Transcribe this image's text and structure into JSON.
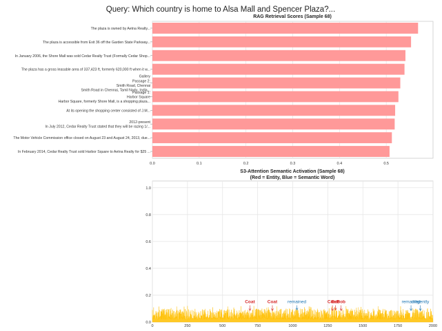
{
  "figure": {
    "suptitle": "Query: Which country is home to Alsa Mall and Spencer Plaza?..."
  },
  "colors": {
    "bar": "#ff9999",
    "activation": "#ffbf00",
    "entity": "#d62728",
    "semantic": "#1f77b4",
    "grid": "#e6e6e6",
    "axis": "#cccccc",
    "text": "#333333"
  },
  "chart_data": [
    {
      "type": "bar",
      "orientation": "horizontal",
      "title": "RAG Retrieval Scores (Sample 68)",
      "xlabel": "",
      "ylabel": "",
      "xlim": [
        0,
        0.6
      ],
      "xticks": [
        "0.0",
        "0.1",
        "0.2",
        "0.3",
        "0.4",
        "0.5"
      ],
      "grid": true,
      "categories": [
        [
          "The plaza is owned by Aetna Realty..."
        ],
        [
          "The plaza is accessible from Exit 36 off the Garden State Parkway..."
        ],
        [
          "In January 2006, the Shore Mall was sold Cedar Realty Trust (Formally Cedar Shop..."
        ],
        [
          "The plaza has a gross leasable area of 337,423 ft, formerly 620,000 ft when it w..."
        ],
        [
          "Gallery",
          "Passage 2:",
          "Smith Road, Chennai",
          "Smith Road in Chennai, Tamil Nadu, India..."
        ],
        [
          "Passage 1:",
          "Harbor Square",
          "Harbor Square, formerly Shore Mall, is a shopping plaza..."
        ],
        [
          "At its opening the shopping center consisted of J.M..."
        ],
        [
          "2012-present",
          "In July 2012, Cedar Realty Trust stated that they will be razing 1/..."
        ],
        [
          "The Motor Vehicle Commission office closed on August 23 and August 24, 2013, due..."
        ],
        [
          "In February 2014, Cedar Realty Trust sold Harbor Square to Aetna Realty for $25 ..."
        ]
      ],
      "values": [
        0.568,
        0.553,
        0.541,
        0.539,
        0.53,
        0.526,
        0.519,
        0.518,
        0.512,
        0.507
      ]
    },
    {
      "type": "area",
      "title": "S3-Attention Semantic Activation (Sample 68)",
      "subtitle": "(Red = Entity, Blue = Semantic Word)",
      "xlim": [
        0,
        2000
      ],
      "ylim": [
        0,
        1.05
      ],
      "xticks": [
        "0",
        "250",
        "500",
        "750",
        "1000",
        "1250",
        "1500",
        "1750",
        "2000"
      ],
      "yticks": [
        "0.0",
        "0.2",
        "0.4",
        "0.6",
        "0.8",
        "1.0"
      ],
      "grid": true,
      "series": [
        {
          "n_points": 2000,
          "baseline": 0.02,
          "typical_max": 0.1,
          "peak": 0.12
        }
      ],
      "annotations": [
        {
          "label": "Coat",
          "x": 695,
          "y": 0.085,
          "kind": "entity"
        },
        {
          "label": "Coat",
          "x": 855,
          "y": 0.085,
          "kind": "entity"
        },
        {
          "label": "remained",
          "x": 1030,
          "y": 0.09,
          "kind": "semantic"
        },
        {
          "label": "Coat",
          "x": 1283,
          "y": 0.085,
          "kind": "entity"
        },
        {
          "label": "Bob",
          "x": 1305,
          "y": 0.09,
          "kind": "entity"
        },
        {
          "label": "Bob",
          "x": 1345,
          "y": 0.085,
          "kind": "entity"
        },
        {
          "label": "remained",
          "x": 1843,
          "y": 0.085,
          "kind": "semantic"
        },
        {
          "label": "diligently",
          "x": 1910,
          "y": 0.085,
          "kind": "semantic"
        }
      ]
    }
  ]
}
